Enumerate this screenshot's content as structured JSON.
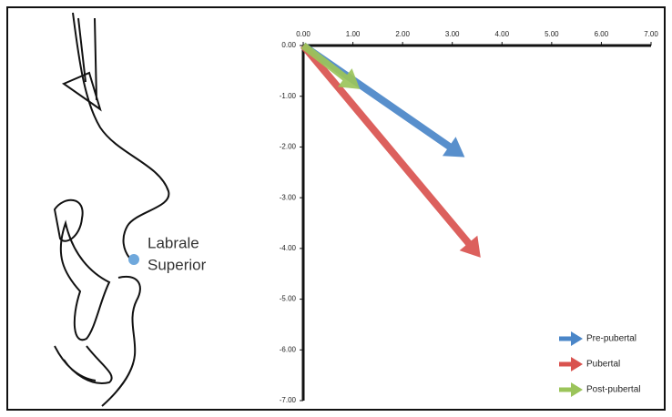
{
  "chart_data": {
    "type": "vector",
    "annotation_lines": [
      "Labrale",
      "Superior"
    ],
    "xlim": [
      0,
      7
    ],
    "ylim": [
      -7,
      0
    ],
    "xticks": [
      {
        "value": 0,
        "label": "0.00"
      },
      {
        "value": 1,
        "label": "1.00"
      },
      {
        "value": 2,
        "label": "2.00"
      },
      {
        "value": 3,
        "label": "3.00"
      },
      {
        "value": 4,
        "label": "4.00"
      },
      {
        "value": 5,
        "label": "5.00"
      },
      {
        "value": 6,
        "label": "6.00"
      },
      {
        "value": 7,
        "label": "7.00"
      }
    ],
    "yticks": [
      {
        "value": 0,
        "label": "0.00"
      },
      {
        "value": -1,
        "label": "-1.00"
      },
      {
        "value": -2,
        "label": "-2.00"
      },
      {
        "value": -3,
        "label": "-3.00"
      },
      {
        "value": -4,
        "label": "-4.00"
      },
      {
        "value": -5,
        "label": "-5.00"
      },
      {
        "value": -6,
        "label": "-6.00"
      },
      {
        "value": -7,
        "label": "-7.00"
      }
    ],
    "series": [
      {
        "name": "Pre-pubertal",
        "color": "#4a86c8",
        "x": 3.25,
        "y": -2.2
      },
      {
        "name": "Pubertal",
        "color": "#d9534f",
        "x": 3.57,
        "y": -4.18
      },
      {
        "name": "Post-pubertal",
        "color": "#9bc45a",
        "x": 1.14,
        "y": -0.86
      }
    ]
  }
}
